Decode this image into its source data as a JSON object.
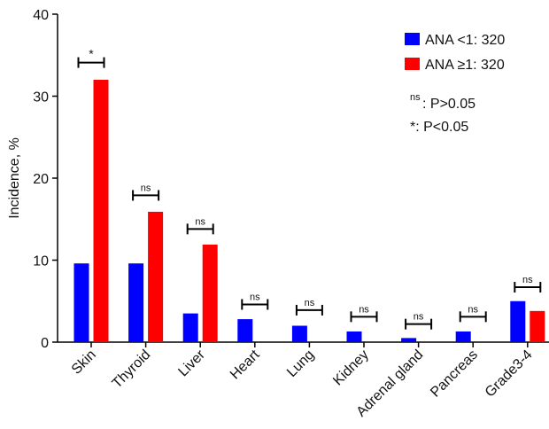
{
  "chart_data": {
    "type": "bar",
    "categories": [
      "Skin",
      "Thyroid",
      "Liver",
      "Heart",
      "Lung",
      "Kidney",
      "Adrenal gland",
      "Pancreas",
      "Grade3-4"
    ],
    "series": [
      {
        "name": "ANA <1: 320",
        "color": "#0000ff",
        "values": [
          9.6,
          9.6,
          3.5,
          2.8,
          2.0,
          1.3,
          0.5,
          1.3,
          5.0
        ]
      },
      {
        "name": "ANA ≥1: 320",
        "color": "#ff0000",
        "values": [
          32.0,
          15.9,
          11.9,
          0,
          0,
          0,
          0,
          0,
          3.8
        ]
      }
    ],
    "ylabel": "Incidence, %",
    "xlabel": "",
    "ylim": [
      0,
      40
    ],
    "yticks": [
      0,
      10,
      20,
      30,
      40
    ],
    "legend_position": "top-right",
    "significance": [
      "*",
      "ns",
      "ns",
      "ns",
      "ns",
      "ns",
      "ns",
      "ns",
      "ns"
    ],
    "bracket_levels": [
      34.1,
      17.9,
      13.8,
      4.6,
      3.9,
      3.1,
      2.2,
      3.1,
      6.7
    ],
    "notes": {
      "ns_sup": "ns",
      "ns_text": ": P>0.05",
      "star_text": "*: P<0.05"
    }
  }
}
